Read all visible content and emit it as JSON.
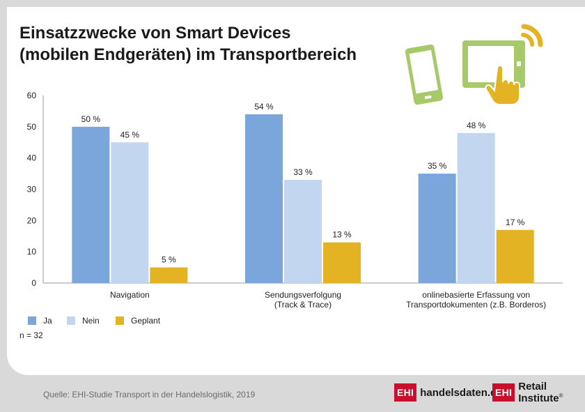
{
  "title_line1": "Einsatzzwecke von Smart Devices",
  "title_line2": "(mobilen Endgeräten) im Transportbereich",
  "chart_data": {
    "type": "bar",
    "categories": [
      [
        "Navigation"
      ],
      [
        "Sendungsverfolgung",
        "(Track & Trace)"
      ],
      [
        "onlinebasierte Erfassung von",
        "Transportdokumenten (z.B. Borderos)"
      ]
    ],
    "series": [
      {
        "name": "Ja",
        "color": "#7aa6dc",
        "values": [
          50,
          54,
          35
        ]
      },
      {
        "name": "Nein",
        "color": "#c2d6ef",
        "values": [
          45,
          33,
          48
        ]
      },
      {
        "name": "Geplant",
        "color": "#e3b323",
        "values": [
          5,
          13,
          17
        ]
      }
    ],
    "value_suffix": " %",
    "ylim": [
      0,
      60
    ],
    "yticks": [
      0,
      10,
      20,
      30,
      40,
      50,
      60
    ],
    "title": "Einsatzzwecke von Smart Devices (mobilen Endgeräten) im Transportbereich",
    "xlabel": "",
    "ylabel": ""
  },
  "legend": [
    "Ja",
    "Nein",
    "Geplant"
  ],
  "sample_size": "n = 32",
  "source": "Quelle: EHI-Studie Transport in der Handelslogistik, 2019",
  "logo1": {
    "badge": "EHI",
    "text": "handelsdaten.de"
  },
  "logo2": {
    "badge": "EHI",
    "text": "Retail Institute",
    "mark": "®"
  },
  "icons": [
    "smartphone-icon",
    "tablet-touch-icon"
  ],
  "colors": {
    "accent_green": "#a8c96a",
    "accent_yellow": "#e3b323",
    "brand_red": "#c8102e"
  }
}
